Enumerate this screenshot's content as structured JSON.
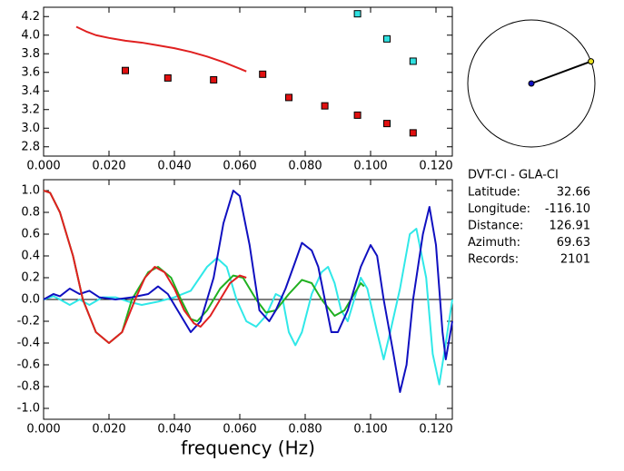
{
  "chart_data": [
    {
      "type": "scatter",
      "xlim": [
        0,
        0.125
      ],
      "ylim": [
        2.7,
        4.3
      ],
      "xticks": [
        {
          "value": 0,
          "label": "0.000"
        },
        {
          "value": 0.02,
          "label": "0.020"
        },
        {
          "value": 0.04,
          "label": "0.040"
        },
        {
          "value": 0.06,
          "label": "0.060"
        },
        {
          "value": 0.08,
          "label": "0.080"
        },
        {
          "value": 0.1,
          "label": "0.100"
        },
        {
          "value": 0.12,
          "label": "0.120"
        }
      ],
      "yticks": [
        {
          "value": 2.8,
          "label": "2.8"
        },
        {
          "value": 3,
          "label": "3.0"
        },
        3.2,
        3.4,
        3.6,
        3.8,
        {
          "value": 4,
          "label": "4.0"
        },
        4.2
      ],
      "series": [
        {
          "mode": "line",
          "color": "#e02020",
          "x": [
            0.01,
            0.013,
            0.016,
            0.02,
            0.025,
            0.03,
            0.035,
            0.04,
            0.045,
            0.05,
            0.055,
            0.06,
            0.062
          ],
          "values": [
            4.09,
            4.04,
            4.0,
            3.97,
            3.94,
            3.92,
            3.89,
            3.86,
            3.82,
            3.77,
            3.71,
            3.64,
            3.61
          ]
        },
        {
          "mode": "markers",
          "color": "#e01010",
          "x": [
            0.025,
            0.038,
            0.052,
            0.067,
            0.075,
            0.086,
            0.096,
            0.105,
            0.113
          ],
          "values": [
            3.62,
            3.54,
            3.52,
            3.58,
            3.33,
            3.24,
            3.14,
            3.05,
            2.95
          ]
        },
        {
          "mode": "markers",
          "color": "#30e0e0",
          "x": [
            0.096,
            0.105,
            0.113
          ],
          "values": [
            4.23,
            3.96,
            3.72
          ]
        }
      ]
    },
    {
      "type": "line",
      "x_label": "frequency (Hz)",
      "xlim": [
        0,
        0.125
      ],
      "ylim": [
        -1.1,
        1.1
      ],
      "xticks": [
        {
          "value": 0,
          "label": "0.000"
        },
        {
          "value": 0.02,
          "label": "0.020"
        },
        {
          "value": 0.04,
          "label": "0.040"
        },
        {
          "value": 0.06,
          "label": "0.060"
        },
        {
          "value": 0.08,
          "label": "0.080"
        },
        {
          "value": 0.1,
          "label": "0.100"
        },
        {
          "value": 0.12,
          "label": "0.120"
        }
      ],
      "yticks": [
        {
          "value": -1,
          "label": "-1.0"
        },
        -0.8,
        -0.6,
        -0.4,
        -0.2,
        {
          "value": 0,
          "label": "0.0"
        },
        0.2,
        0.4,
        0.6,
        0.8,
        {
          "value": 1,
          "label": "1.0"
        }
      ],
      "series": [
        {
          "color": "#30e8e8",
          "x": [
            0,
            0.003,
            0.005,
            0.008,
            0.011,
            0.014,
            0.018,
            0.022,
            0.026,
            0.03,
            0.035,
            0.04,
            0.045,
            0.05,
            0.053,
            0.056,
            0.059,
            0.062,
            0.065,
            0.068,
            0.071,
            0.073,
            0.075,
            0.077,
            0.079,
            0.082,
            0.085,
            0.087,
            0.089,
            0.091,
            0.093,
            0.095,
            0.097,
            0.099,
            0.102,
            0.104,
            0.106,
            0.109,
            0.112,
            0.114,
            0.117,
            0.119,
            0.121,
            0.123,
            0.125
          ],
          "values": [
            0,
            0.03,
            0,
            -0.05,
            0,
            -0.05,
            0.02,
            0.02,
            -0.02,
            -0.05,
            -0.02,
            0.02,
            0.08,
            0.3,
            0.38,
            0.3,
            0,
            -0.2,
            -0.25,
            -0.15,
            0.05,
            0.02,
            -0.3,
            -0.42,
            -0.3,
            0.05,
            0.25,
            0.3,
            0.15,
            -0.1,
            -0.2,
            0,
            0.2,
            0.1,
            -0.3,
            -0.55,
            -0.3,
            0.1,
            0.6,
            0.65,
            0.2,
            -0.5,
            -0.78,
            -0.4,
            0
          ]
        },
        {
          "color": "#20b020",
          "x": [
            0,
            0.002,
            0.005,
            0.009,
            0.012,
            0.016,
            0.02,
            0.024,
            0.027,
            0.032,
            0.035,
            0.039,
            0.042,
            0.045,
            0.047,
            0.05,
            0.054,
            0.058,
            0.061,
            0.065,
            0.068,
            0.071,
            0.075,
            0.079,
            0.082,
            0.085,
            0.089,
            0.092,
            0.095,
            0.097,
            0.098
          ],
          "values": [
            1,
            0.98,
            0.8,
            0.4,
            0,
            -0.3,
            -0.4,
            -0.3,
            0,
            0.25,
            0.3,
            0.2,
            0,
            -0.18,
            -0.2,
            -0.1,
            0.1,
            0.22,
            0.2,
            0,
            -0.12,
            -0.1,
            0.05,
            0.18,
            0.15,
            0,
            -0.15,
            -0.1,
            0.05,
            0.15,
            0.12
          ]
        },
        {
          "color": "#1010c0",
          "x": [
            0,
            0.003,
            0.005,
            0.008,
            0.011,
            0.014,
            0.017,
            0.022,
            0.027,
            0.032,
            0.035,
            0.038,
            0.041,
            0.045,
            0.048,
            0.052,
            0.055,
            0.058,
            0.06,
            0.063,
            0.066,
            0.069,
            0.071,
            0.074,
            0.077,
            0.079,
            0.082,
            0.084,
            0.086,
            0.088,
            0.09,
            0.093,
            0.097,
            0.1,
            0.102,
            0.104,
            0.107,
            0.109,
            0.111,
            0.113,
            0.116,
            0.118,
            0.12,
            0.122,
            0.123,
            0.125
          ],
          "values": [
            0,
            0.05,
            0.03,
            0.1,
            0.05,
            0.08,
            0.02,
            0,
            0.02,
            0.05,
            0.12,
            0.05,
            -0.1,
            -0.3,
            -0.2,
            0.2,
            0.7,
            1,
            0.95,
            0.5,
            -0.1,
            -0.2,
            -0.1,
            0.1,
            0.35,
            0.52,
            0.45,
            0.3,
            0,
            -0.3,
            -0.3,
            -0.1,
            0.3,
            0.5,
            0.4,
            0,
            -0.5,
            -0.85,
            -0.6,
            0,
            0.6,
            0.85,
            0.5,
            -0.3,
            -0.55,
            -0.2
          ]
        },
        {
          "color": "#e02020",
          "x": [
            0,
            0.002,
            0.005,
            0.009,
            0.012,
            0.016,
            0.02,
            0.024,
            0.028,
            0.031,
            0.034,
            0.037,
            0.04,
            0.043,
            0.046,
            0.048,
            0.051,
            0.054,
            0.057,
            0.06,
            0.062
          ],
          "values": [
            1,
            0.98,
            0.8,
            0.4,
            0,
            -0.3,
            -0.4,
            -0.3,
            0,
            0.2,
            0.3,
            0.25,
            0.1,
            -0.1,
            -0.22,
            -0.25,
            -0.15,
            0,
            0.15,
            0.22,
            0.2
          ]
        }
      ]
    }
  ],
  "station_info": {
    "title": "DVT-CI - GLA-CI",
    "fields": [
      {
        "label": "Latitude:",
        "value": 32.66
      },
      {
        "label": "Longitude:",
        "value": -116.1,
        "value_label": "-116.10"
      },
      {
        "label": "Distance:",
        "value": 126.91
      },
      {
        "label": "Azimuth:",
        "value": 69.63
      },
      {
        "label": "Records:",
        "value": 2101
      }
    ]
  }
}
